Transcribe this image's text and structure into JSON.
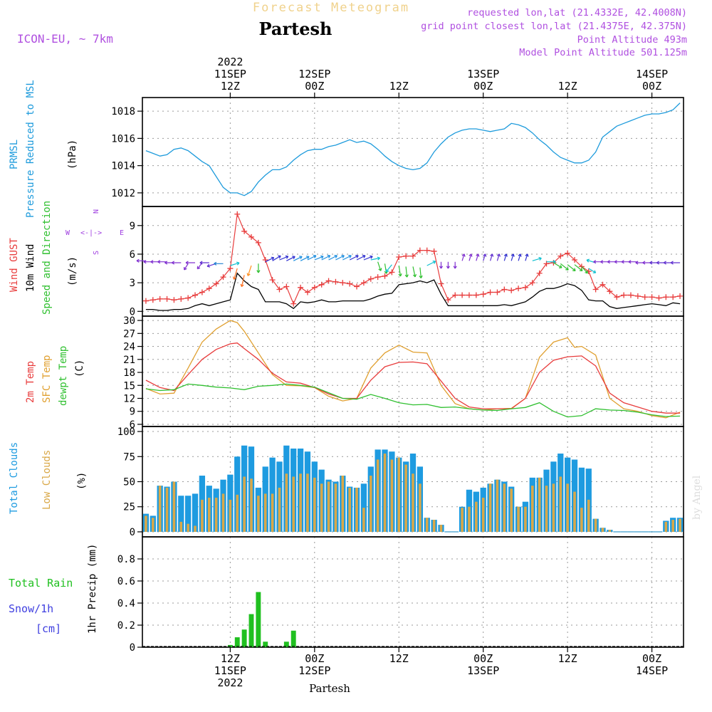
{
  "header": {
    "title": "Forecast Meteogram",
    "location": "Partesh",
    "model": "ICON-EU, ~ 7km",
    "requested": "requested lon,lat (21.4332E, 42.4008N)",
    "grid_point": "grid point closest lon,lat (21.4375E, 42.375N)",
    "point_altitude": "Point Altitude 493m",
    "model_altitude": "Model Point Altitude 501.125m",
    "footer_location": "Partesh",
    "watermark": "by Angel"
  },
  "colors": {
    "pressure": "#1e9bdc",
    "gust": "#e83c3c",
    "wind": "#000000",
    "temp2m": "#e83c3c",
    "sfc": "#e0a030",
    "dewpt": "#30c030",
    "total_clouds": "#1e9be0",
    "low_clouds": "#d9a848",
    "rain": "#20c020",
    "snow": "#4040e0",
    "arrow_label": "#a040e0",
    "meta_label": "#b050e0"
  },
  "time_axis": {
    "top_labels": [
      {
        "t": 12,
        "lines": [
          "2022",
          "11SEP",
          "12Z"
        ]
      },
      {
        "t": 24,
        "lines": [
          "12SEP",
          "00Z"
        ]
      },
      {
        "t": 36,
        "lines": [
          "12Z"
        ]
      },
      {
        "t": 48,
        "lines": [
          "13SEP",
          "00Z"
        ]
      },
      {
        "t": 60,
        "lines": [
          "12Z"
        ]
      },
      {
        "t": 72,
        "lines": [
          "14SEP",
          "00Z"
        ]
      }
    ],
    "bottom_labels": [
      {
        "t": 12,
        "lines": [
          "12Z",
          "11SEP",
          "2022"
        ]
      },
      {
        "t": 24,
        "lines": [
          "00Z",
          "12SEP"
        ]
      },
      {
        "t": 36,
        "lines": [
          "12Z"
        ]
      },
      {
        "t": 48,
        "lines": [
          "00Z",
          "13SEP"
        ]
      },
      {
        "t": 60,
        "lines": [
          "12Z"
        ]
      },
      {
        "t": 72,
        "lines": [
          "00Z",
          "14SEP"
        ]
      }
    ]
  },
  "panels": {
    "pressure": {
      "labels": [
        "PRMSL",
        "Pressure Reduced to MSL"
      ],
      "unit": "(hPa)",
      "ylim": [
        1011,
        1019
      ],
      "ticks": [
        1012,
        1014,
        1016,
        1018
      ]
    },
    "wind": {
      "labels": [
        "Wind GUST",
        "10m Wind",
        "Speed and Direction"
      ],
      "unit": "(m/s)",
      "ylim": [
        -0.5,
        11
      ],
      "ticks": [
        0,
        3,
        6,
        9
      ],
      "compass": {
        "n": "N",
        "s": "S",
        "w": "W",
        "e": "E",
        "arrows": "<-|->"
      }
    },
    "temperature": {
      "labels": [
        "2m Temp",
        "SFC Temp",
        "dewpt Temp"
      ],
      "unit": "(C)",
      "ylim": [
        5.5,
        31
      ],
      "ticks": [
        6,
        9,
        12,
        15,
        18,
        21,
        24,
        27,
        30
      ]
    },
    "clouds": {
      "labels": [
        "Total Clouds",
        "Low Clouds"
      ],
      "unit": "(%)",
      "ylim": [
        -5,
        105
      ],
      "ticks": [
        0,
        25,
        50,
        75,
        100
      ]
    },
    "precip": {
      "labels": [
        "Total Rain",
        "Snow/1h",
        "[cm]"
      ],
      "unit": "1hr Precip (mm)",
      "ylim": [
        0,
        1.0
      ],
      "ticks": [
        0,
        0.2,
        0.4,
        0.6,
        0.8
      ]
    }
  },
  "chart_data": [
    {
      "type": "line",
      "name": "PRMSL",
      "x_hours": [
        0,
        1,
        2,
        3,
        4,
        5,
        6,
        7,
        8,
        9,
        10,
        11,
        12,
        13,
        14,
        15,
        16,
        17,
        18,
        19,
        20,
        21,
        22,
        23,
        24,
        25,
        26,
        27,
        28,
        29,
        30,
        31,
        32,
        33,
        34,
        35,
        36,
        37,
        38,
        39,
        40,
        41,
        42,
        43,
        44,
        45,
        46,
        47,
        48,
        49,
        50,
        51,
        52,
        53,
        54,
        55,
        56,
        57,
        58,
        59,
        60,
        61,
        62,
        63,
        64,
        65,
        66,
        67,
        68,
        69,
        70,
        71,
        72,
        73,
        74,
        75,
        76
      ],
      "values": [
        1015.1,
        1014.9,
        1014.7,
        1014.8,
        1015.2,
        1015.3,
        1015.1,
        1014.7,
        1014.3,
        1014.0,
        1013.2,
        1012.4,
        1012.0,
        1012.0,
        1011.8,
        1012.1,
        1012.8,
        1013.3,
        1013.7,
        1013.7,
        1013.9,
        1014.4,
        1014.8,
        1015.1,
        1015.2,
        1015.2,
        1015.4,
        1015.5,
        1015.7,
        1015.9,
        1015.7,
        1015.8,
        1015.6,
        1015.2,
        1014.7,
        1014.3,
        1014.0,
        1013.8,
        1013.7,
        1013.8,
        1014.2,
        1015.0,
        1015.6,
        1016.1,
        1016.4,
        1016.6,
        1016.7,
        1016.7,
        1016.6,
        1016.5,
        1016.6,
        1016.7,
        1017.1,
        1017.0,
        1016.8,
        1016.4,
        1015.9,
        1015.5,
        1015.0,
        1014.6,
        1014.4,
        1014.2,
        1014.2,
        1014.4,
        1015.0,
        1016.1,
        1016.5,
        1016.9,
        1017.1,
        1017.3,
        1017.5,
        1017.7,
        1017.8,
        1017.8,
        1017.9,
        1018.1,
        1018.6
      ]
    },
    {
      "type": "line",
      "name": "Wind GUST",
      "x_hours": [
        0,
        1,
        2,
        3,
        4,
        5,
        6,
        7,
        8,
        9,
        10,
        11,
        12,
        13,
        14,
        15,
        16,
        17,
        18,
        19,
        20,
        21,
        22,
        23,
        24,
        25,
        26,
        27,
        28,
        29,
        30,
        31,
        32,
        33,
        34,
        35,
        36,
        37,
        38,
        39,
        40,
        41,
        42,
        43,
        44,
        45,
        46,
        47,
        48,
        49,
        50,
        51,
        52,
        53,
        54,
        55,
        56,
        57,
        58,
        59,
        60,
        61,
        62,
        63,
        64,
        65,
        66,
        67,
        68,
        69,
        70,
        71,
        72,
        73,
        74,
        75,
        76
      ],
      "values": [
        1.1,
        1.2,
        1.3,
        1.3,
        1.2,
        1.3,
        1.4,
        1.7,
        2.0,
        2.4,
        2.9,
        3.6,
        4.5,
        10.2,
        8.4,
        7.8,
        7.2,
        5.4,
        3.3,
        2.3,
        2.6,
        0.8,
        2.5,
        2.0,
        2.5,
        2.8,
        3.2,
        3.1,
        3.0,
        2.9,
        2.6,
        3.0,
        3.4,
        3.6,
        3.7,
        4.1,
        5.7,
        5.8,
        5.8,
        6.4,
        6.4,
        6.3,
        2.9,
        1.2,
        1.7,
        1.7,
        1.7,
        1.7,
        1.8,
        2.0,
        2.0,
        2.3,
        2.2,
        2.4,
        2.5,
        3.0,
        4.0,
        5.0,
        5.1,
        5.8,
        6.1,
        5.4,
        4.7,
        4.2,
        2.3,
        2.8,
        2.1,
        1.5,
        1.7,
        1.7,
        1.6,
        1.5,
        1.5,
        1.4,
        1.5,
        1.5,
        1.6
      ]
    },
    {
      "type": "line",
      "name": "10m Wind",
      "x_hours": [
        0,
        1,
        2,
        3,
        4,
        5,
        6,
        7,
        8,
        9,
        10,
        11,
        12,
        13,
        14,
        15,
        16,
        17,
        18,
        19,
        20,
        21,
        22,
        23,
        24,
        25,
        26,
        27,
        28,
        29,
        30,
        31,
        32,
        33,
        34,
        35,
        36,
        37,
        38,
        39,
        40,
        41,
        42,
        43,
        44,
        45,
        46,
        47,
        48,
        49,
        50,
        51,
        52,
        53,
        54,
        55,
        56,
        57,
        58,
        59,
        60,
        61,
        62,
        63,
        64,
        65,
        66,
        67,
        68,
        69,
        70,
        71,
        72,
        73,
        74,
        75,
        76
      ],
      "values": [
        0.2,
        0.2,
        0.1,
        0.1,
        0.2,
        0.2,
        0.3,
        0.6,
        0.8,
        0.6,
        0.8,
        1.0,
        1.2,
        4.0,
        3.2,
        2.6,
        2.3,
        1.0,
        1.0,
        1.0,
        0.8,
        0.3,
        1.0,
        0.9,
        1.0,
        1.2,
        1.0,
        1.0,
        1.1,
        1.1,
        1.1,
        1.1,
        1.3,
        1.6,
        1.8,
        1.9,
        2.8,
        2.9,
        3.0,
        3.2,
        3.0,
        3.3,
        1.8,
        0.6,
        0.6,
        0.6,
        0.6,
        0.6,
        0.6,
        0.6,
        0.6,
        0.7,
        0.6,
        0.8,
        1.0,
        1.5,
        2.1,
        2.4,
        2.4,
        2.6,
        2.9,
        2.7,
        2.2,
        1.2,
        1.1,
        1.1,
        0.5,
        0.3,
        0.4,
        0.5,
        0.6,
        0.7,
        0.8,
        0.7,
        0.6,
        0.9,
        0.8
      ]
    },
    {
      "type": "line",
      "name": "2m Temp",
      "x_hours": [
        0,
        2,
        4,
        6,
        8,
        10,
        12,
        13,
        14,
        16,
        18,
        20,
        22,
        24,
        26,
        28,
        30,
        32,
        34,
        36,
        38,
        40,
        42,
        44,
        46,
        48,
        50,
        52,
        54,
        56,
        58,
        60,
        62,
        64,
        66,
        68,
        70,
        72,
        74,
        76
      ],
      "values": [
        16.2,
        14.5,
        13.8,
        17.5,
        21,
        23.3,
        24.6,
        24.8,
        23.5,
        21.0,
        17.8,
        15.8,
        15.5,
        14.5,
        13.0,
        12.0,
        12.0,
        16.2,
        19.3,
        20.3,
        20.4,
        20.0,
        16.0,
        12.0,
        10.0,
        9.6,
        9.6,
        9.6,
        12.0,
        18.0,
        20.8,
        21.6,
        21.8,
        19.5,
        13.2,
        11.0,
        10.0,
        9.0,
        8.6,
        8.6
      ]
    },
    {
      "type": "line",
      "name": "SFC Temp",
      "x_hours": [
        0,
        2,
        4,
        6,
        8,
        10,
        12,
        13,
        14,
        16,
        18,
        20,
        22,
        24,
        26,
        28,
        30,
        32,
        34,
        36,
        38,
        40,
        42,
        44,
        46,
        48,
        50,
        52,
        54,
        56,
        58,
        60,
        61,
        62,
        64,
        66,
        68,
        70,
        72,
        74,
        76
      ],
      "values": [
        14.3,
        13.0,
        13.2,
        19.0,
        25.0,
        28.0,
        30.0,
        29.5,
        27.5,
        22.5,
        17.5,
        15.0,
        14.9,
        14.5,
        12.5,
        11.4,
        12.0,
        19.0,
        22.5,
        24.3,
        22.7,
        22.5,
        15.0,
        10.8,
        9.6,
        9.3,
        9.6,
        9.7,
        12.0,
        21.5,
        25.0,
        26.0,
        23.8,
        24.0,
        22.0,
        12.0,
        9.6,
        9.0,
        8.0,
        7.5,
        8.8
      ]
    },
    {
      "type": "line",
      "name": "dewpt Temp",
      "x_hours": [
        0,
        2,
        4,
        6,
        8,
        10,
        12,
        14,
        16,
        18,
        20,
        22,
        24,
        26,
        28,
        30,
        32,
        34,
        36,
        38,
        40,
        42,
        44,
        46,
        48,
        50,
        52,
        54,
        56,
        58,
        60,
        62,
        64,
        66,
        68,
        70,
        72,
        74,
        76
      ],
      "values": [
        14.2,
        13.8,
        14.0,
        15.3,
        15.0,
        14.6,
        14.4,
        14.0,
        14.8,
        15.0,
        15.3,
        15.0,
        14.6,
        13.3,
        12.0,
        11.8,
        12.9,
        12.0,
        11.0,
        10.5,
        10.6,
        9.9,
        10.0,
        9.6,
        9.3,
        9.2,
        9.6,
        9.9,
        11.0,
        9.0,
        7.7,
        8.0,
        9.6,
        9.3,
        9.2,
        8.8,
        8.2,
        7.8,
        7.9
      ]
    },
    {
      "type": "bar",
      "name": "Total Clouds",
      "x_hours": [
        0,
        1,
        2,
        3,
        4,
        5,
        6,
        7,
        8,
        9,
        10,
        11,
        12,
        13,
        14,
        15,
        16,
        17,
        18,
        19,
        20,
        21,
        22,
        23,
        24,
        25,
        26,
        27,
        28,
        29,
        30,
        31,
        32,
        33,
        34,
        35,
        36,
        37,
        38,
        39,
        40,
        41,
        42,
        43,
        44,
        45,
        46,
        47,
        48,
        49,
        50,
        51,
        52,
        53,
        54,
        55,
        56,
        57,
        58,
        59,
        60,
        61,
        62,
        63,
        64,
        65,
        66,
        67,
        68,
        69,
        70,
        71,
        72,
        73,
        74,
        75,
        76
      ],
      "values": [
        18,
        16,
        46,
        45,
        50,
        36,
        36,
        38,
        56,
        46,
        43,
        52,
        57,
        75,
        86,
        85,
        44,
        65,
        74,
        70,
        86,
        83,
        83,
        80,
        70,
        62,
        52,
        50,
        56,
        45,
        44,
        48,
        65,
        82,
        82,
        80,
        74,
        70,
        78,
        65,
        14,
        12,
        7,
        0,
        0,
        25,
        42,
        40,
        44,
        48,
        52,
        50,
        45,
        25,
        30,
        54,
        54,
        62,
        70,
        78,
        74,
        72,
        64,
        63,
        13,
        4,
        2,
        0,
        0,
        0,
        0,
        0,
        0,
        0,
        11,
        14,
        14
      ]
    },
    {
      "type": "bar",
      "name": "Low Clouds",
      "x_hours": [
        0,
        1,
        2,
        3,
        4,
        5,
        6,
        7,
        8,
        9,
        10,
        11,
        12,
        13,
        14,
        15,
        16,
        17,
        18,
        19,
        20,
        21,
        22,
        23,
        24,
        25,
        26,
        27,
        28,
        29,
        30,
        31,
        32,
        33,
        34,
        35,
        36,
        37,
        38,
        39,
        40,
        41,
        42,
        43,
        44,
        45,
        46,
        47,
        48,
        49,
        50,
        51,
        52,
        53,
        54,
        55,
        56,
        57,
        58,
        59,
        60,
        61,
        62,
        63,
        64,
        65,
        66,
        67,
        68,
        69,
        70,
        71,
        72,
        73,
        74,
        75,
        76
      ],
      "values": [
        16,
        14,
        46,
        44,
        50,
        10,
        8,
        6,
        32,
        34,
        34,
        38,
        32,
        37,
        55,
        53,
        36,
        38,
        38,
        44,
        58,
        55,
        58,
        58,
        54,
        48,
        50,
        48,
        56,
        44,
        44,
        24,
        56,
        72,
        78,
        72,
        74,
        67,
        58,
        48,
        14,
        12,
        7,
        0,
        0,
        24,
        25,
        30,
        34,
        48,
        52,
        48,
        43,
        25,
        25,
        46,
        54,
        46,
        48,
        55,
        48,
        40,
        24,
        32,
        13,
        4,
        2,
        0,
        0,
        0,
        0,
        0,
        0,
        0,
        10,
        12,
        13
      ]
    },
    {
      "type": "bar",
      "name": "1hr Precip",
      "x_hours": [
        12,
        13,
        14,
        15,
        16,
        17,
        18,
        19,
        20,
        21
      ],
      "values": [
        0.02,
        0.09,
        0.16,
        0.3,
        0.5,
        0.05,
        0,
        0,
        0.05,
        0.15
      ]
    }
  ]
}
